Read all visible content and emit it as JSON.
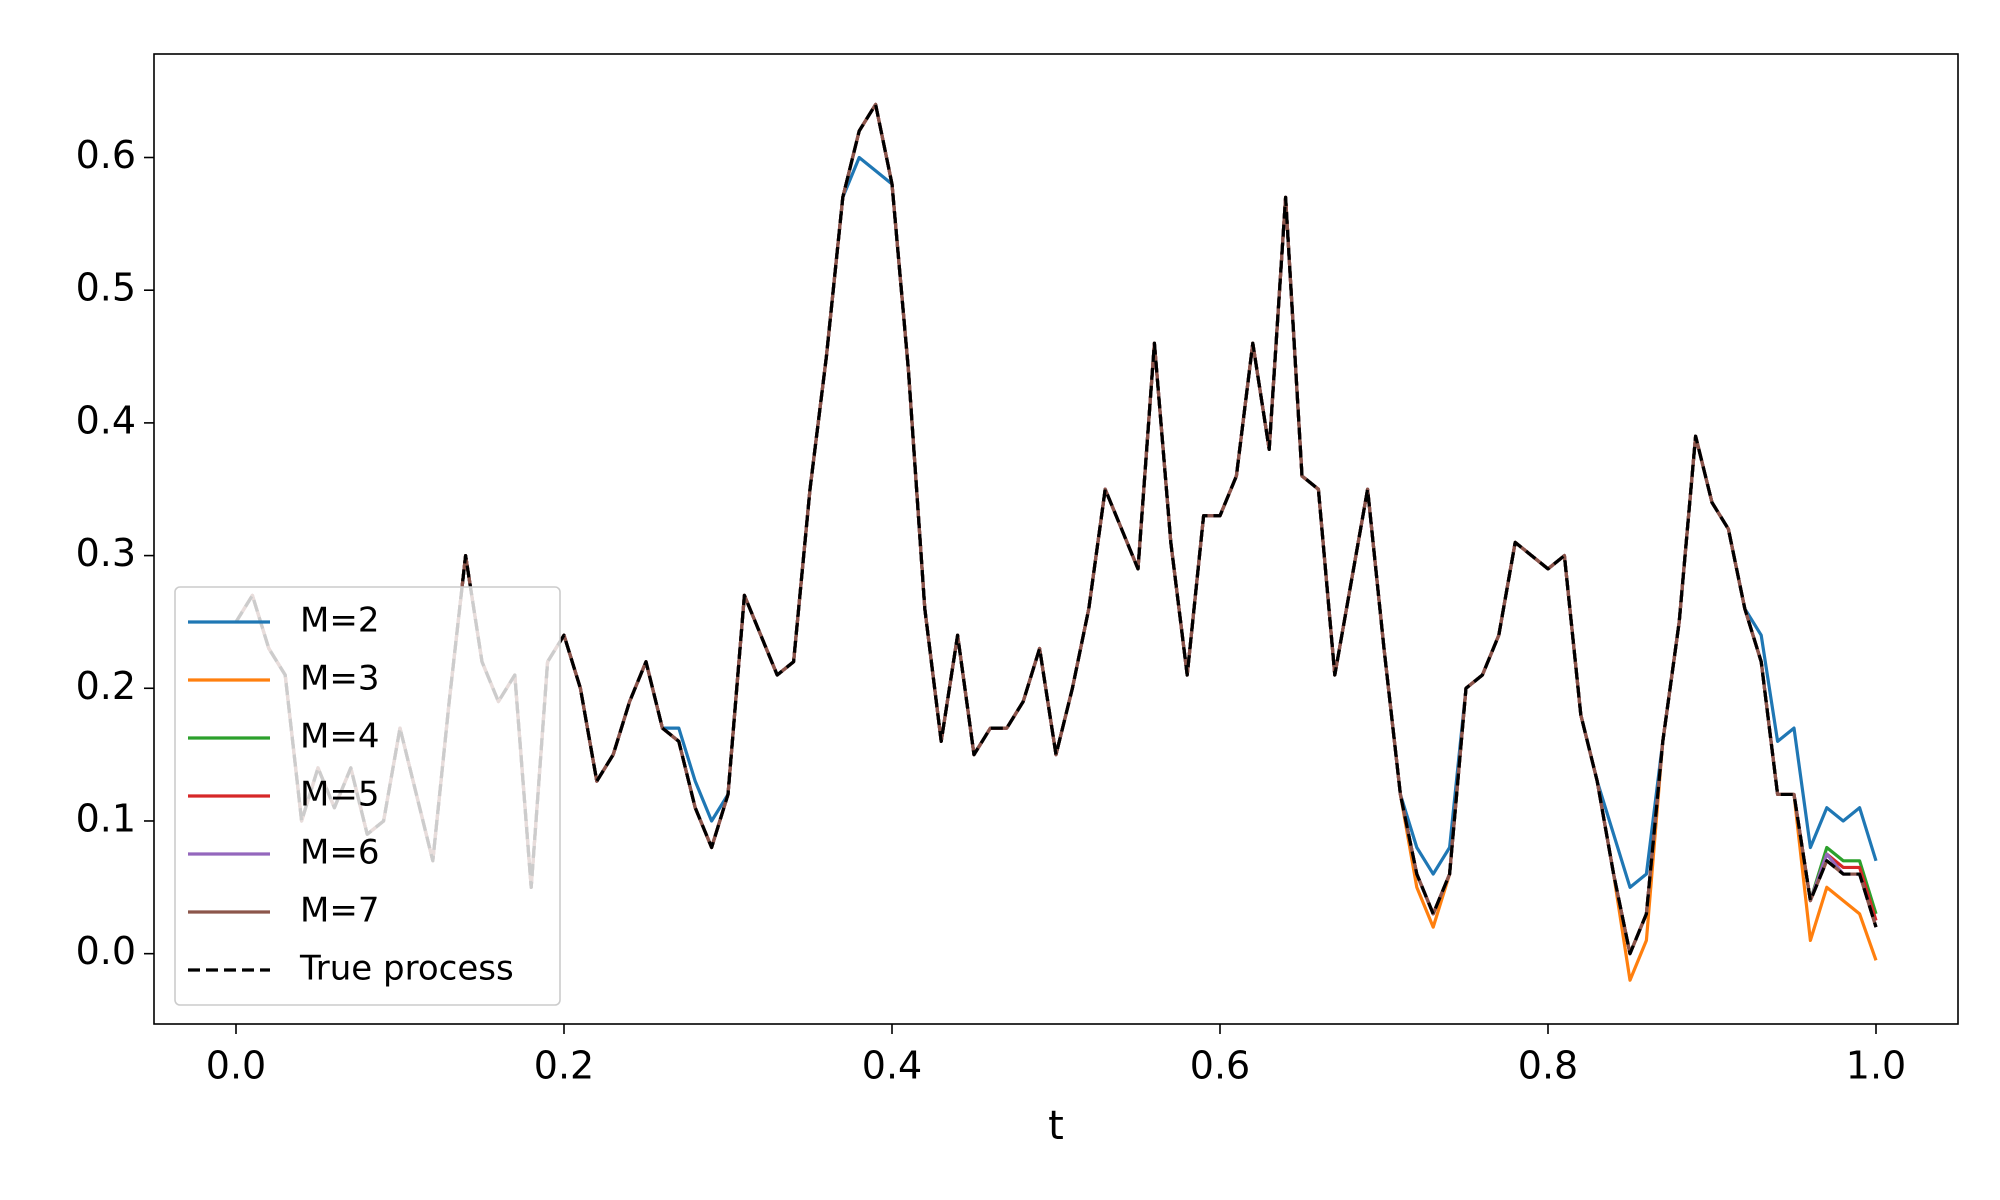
{
  "chart_data": {
    "type": "line",
    "x_label": "t",
    "x": [
      0,
      0.01,
      0.02,
      0.03,
      0.04,
      0.05,
      0.06,
      0.07,
      0.08,
      0.09,
      0.1,
      0.11,
      0.12,
      0.13,
      0.14,
      0.15,
      0.16,
      0.17,
      0.18,
      0.19,
      0.2,
      0.21,
      0.22,
      0.23,
      0.24,
      0.25,
      0.26,
      0.27,
      0.28,
      0.29,
      0.3,
      0.31,
      0.32,
      0.33,
      0.34,
      0.35,
      0.36,
      0.37,
      0.38,
      0.39,
      0.4,
      0.41,
      0.42,
      0.43,
      0.44,
      0.45,
      0.46,
      0.47,
      0.48,
      0.49,
      0.5,
      0.51,
      0.52,
      0.53,
      0.54,
      0.55,
      0.56,
      0.57,
      0.58,
      0.59,
      0.6,
      0.61,
      0.62,
      0.63,
      0.64,
      0.65,
      0.66,
      0.67,
      0.68,
      0.69,
      0.7,
      0.71,
      0.72,
      0.73,
      0.74,
      0.75,
      0.76,
      0.77,
      0.78,
      0.79,
      0.8,
      0.81,
      0.82,
      0.83,
      0.84,
      0.85,
      0.86,
      0.87,
      0.88,
      0.89,
      0.9,
      0.91,
      0.92,
      0.93,
      0.94,
      0.95,
      0.96,
      0.97,
      0.98,
      0.99,
      1
    ],
    "series": [
      {
        "name": "M=2",
        "color": "#1f77b4",
        "linestyle": "solid",
        "values": [
          0.25,
          0.27,
          0.23,
          0.21,
          0.1,
          0.14,
          0.11,
          0.14,
          0.09,
          0.1,
          0.17,
          0.12,
          0.07,
          0.19,
          0.3,
          0.22,
          0.19,
          0.21,
          0.05,
          0.22,
          0.24,
          0.2,
          0.13,
          0.15,
          0.19,
          0.22,
          0.17,
          0.17,
          0.13,
          0.1,
          0.12,
          0.27,
          0.24,
          0.21,
          0.22,
          0.35,
          0.45,
          0.57,
          0.6,
          0.59,
          0.58,
          0.44,
          0.26,
          0.16,
          0.24,
          0.15,
          0.17,
          0.17,
          0.19,
          0.23,
          0.15,
          0.2,
          0.26,
          0.35,
          0.32,
          0.29,
          0.46,
          0.31,
          0.21,
          0.33,
          0.33,
          0.36,
          0.46,
          0.38,
          0.57,
          0.36,
          0.35,
          0.21,
          0.28,
          0.35,
          0.23,
          0.12,
          0.08,
          0.06,
          0.08,
          0.2,
          0.21,
          0.24,
          0.31,
          0.3,
          0.29,
          0.3,
          0.18,
          0.13,
          0.09,
          0.05,
          0.06,
          0.16,
          0.25,
          0.39,
          0.34,
          0.32,
          0.26,
          0.24,
          0.16,
          0.17,
          0.08,
          0.11,
          0.1,
          0.11,
          0.07
        ]
      },
      {
        "name": "M=3",
        "color": "#ff7f0e",
        "linestyle": "solid",
        "values": [
          0.25,
          0.27,
          0.23,
          0.21,
          0.1,
          0.14,
          0.11,
          0.14,
          0.09,
          0.1,
          0.17,
          0.12,
          0.07,
          0.19,
          0.3,
          0.22,
          0.19,
          0.21,
          0.05,
          0.22,
          0.24,
          0.2,
          0.13,
          0.15,
          0.19,
          0.22,
          0.17,
          0.16,
          0.11,
          0.08,
          0.12,
          0.27,
          0.24,
          0.21,
          0.22,
          0.35,
          0.45,
          0.57,
          0.62,
          0.64,
          0.58,
          0.44,
          0.26,
          0.16,
          0.24,
          0.15,
          0.17,
          0.17,
          0.19,
          0.23,
          0.15,
          0.2,
          0.26,
          0.35,
          0.32,
          0.29,
          0.46,
          0.31,
          0.21,
          0.33,
          0.33,
          0.36,
          0.46,
          0.38,
          0.57,
          0.36,
          0.35,
          0.21,
          0.28,
          0.35,
          0.23,
          0.12,
          0.05,
          0.02,
          0.06,
          0.2,
          0.21,
          0.24,
          0.31,
          0.3,
          0.29,
          0.3,
          0.18,
          0.13,
          0.06,
          -0.02,
          0.01,
          0.16,
          0.25,
          0.39,
          0.34,
          0.32,
          0.26,
          0.22,
          0.12,
          0.12,
          0.01,
          0.05,
          0.04,
          0.03,
          -0.005
        ]
      },
      {
        "name": "M=4",
        "color": "#2ca02c",
        "linestyle": "solid",
        "values": [
          0.25,
          0.27,
          0.23,
          0.21,
          0.1,
          0.14,
          0.11,
          0.14,
          0.09,
          0.1,
          0.17,
          0.12,
          0.07,
          0.19,
          0.3,
          0.22,
          0.19,
          0.21,
          0.05,
          0.22,
          0.24,
          0.2,
          0.13,
          0.15,
          0.19,
          0.22,
          0.17,
          0.16,
          0.11,
          0.08,
          0.12,
          0.27,
          0.24,
          0.21,
          0.22,
          0.35,
          0.45,
          0.57,
          0.62,
          0.64,
          0.58,
          0.44,
          0.26,
          0.16,
          0.24,
          0.15,
          0.17,
          0.17,
          0.19,
          0.23,
          0.15,
          0.2,
          0.26,
          0.35,
          0.32,
          0.29,
          0.46,
          0.31,
          0.21,
          0.33,
          0.33,
          0.36,
          0.46,
          0.38,
          0.57,
          0.36,
          0.35,
          0.21,
          0.28,
          0.35,
          0.23,
          0.12,
          0.06,
          0.03,
          0.06,
          0.2,
          0.21,
          0.24,
          0.31,
          0.3,
          0.29,
          0.3,
          0.18,
          0.13,
          0.06,
          0.0,
          0.03,
          0.16,
          0.25,
          0.39,
          0.34,
          0.32,
          0.26,
          0.22,
          0.12,
          0.12,
          0.04,
          0.08,
          0.07,
          0.07,
          0.03
        ]
      },
      {
        "name": "M=5",
        "color": "#d62728",
        "linestyle": "solid",
        "values": [
          0.25,
          0.27,
          0.23,
          0.21,
          0.1,
          0.14,
          0.11,
          0.14,
          0.09,
          0.1,
          0.17,
          0.12,
          0.07,
          0.19,
          0.3,
          0.22,
          0.19,
          0.21,
          0.05,
          0.22,
          0.24,
          0.2,
          0.13,
          0.15,
          0.19,
          0.22,
          0.17,
          0.16,
          0.11,
          0.08,
          0.12,
          0.27,
          0.24,
          0.21,
          0.22,
          0.35,
          0.45,
          0.57,
          0.62,
          0.64,
          0.58,
          0.44,
          0.26,
          0.16,
          0.24,
          0.15,
          0.17,
          0.17,
          0.19,
          0.23,
          0.15,
          0.2,
          0.26,
          0.35,
          0.32,
          0.29,
          0.46,
          0.31,
          0.21,
          0.33,
          0.33,
          0.36,
          0.46,
          0.38,
          0.57,
          0.36,
          0.35,
          0.21,
          0.28,
          0.35,
          0.23,
          0.12,
          0.06,
          0.03,
          0.06,
          0.2,
          0.21,
          0.24,
          0.31,
          0.3,
          0.29,
          0.3,
          0.18,
          0.13,
          0.06,
          0.0,
          0.03,
          0.16,
          0.25,
          0.39,
          0.34,
          0.32,
          0.26,
          0.22,
          0.12,
          0.12,
          0.04,
          0.075,
          0.065,
          0.065,
          0.025
        ]
      },
      {
        "name": "M=6",
        "color": "#9467bd",
        "linestyle": "solid",
        "values": [
          0.25,
          0.27,
          0.23,
          0.21,
          0.1,
          0.14,
          0.11,
          0.14,
          0.09,
          0.1,
          0.17,
          0.12,
          0.07,
          0.19,
          0.3,
          0.22,
          0.19,
          0.21,
          0.05,
          0.22,
          0.24,
          0.2,
          0.13,
          0.15,
          0.19,
          0.22,
          0.17,
          0.16,
          0.11,
          0.08,
          0.12,
          0.27,
          0.24,
          0.21,
          0.22,
          0.35,
          0.45,
          0.57,
          0.62,
          0.64,
          0.58,
          0.44,
          0.26,
          0.16,
          0.24,
          0.15,
          0.17,
          0.17,
          0.19,
          0.23,
          0.15,
          0.2,
          0.26,
          0.35,
          0.32,
          0.29,
          0.46,
          0.31,
          0.21,
          0.33,
          0.33,
          0.36,
          0.46,
          0.38,
          0.57,
          0.36,
          0.35,
          0.21,
          0.28,
          0.35,
          0.23,
          0.12,
          0.06,
          0.03,
          0.06,
          0.2,
          0.21,
          0.24,
          0.31,
          0.3,
          0.29,
          0.3,
          0.18,
          0.13,
          0.06,
          0.0,
          0.03,
          0.16,
          0.25,
          0.39,
          0.34,
          0.32,
          0.26,
          0.22,
          0.12,
          0.12,
          0.04,
          0.075,
          0.06,
          0.06,
          0.02
        ]
      },
      {
        "name": "M=7",
        "color": "#8c564b",
        "linestyle": "solid",
        "values": [
          0.25,
          0.27,
          0.23,
          0.21,
          0.1,
          0.14,
          0.11,
          0.14,
          0.09,
          0.1,
          0.17,
          0.12,
          0.07,
          0.19,
          0.3,
          0.22,
          0.19,
          0.21,
          0.05,
          0.22,
          0.24,
          0.2,
          0.13,
          0.15,
          0.19,
          0.22,
          0.17,
          0.16,
          0.11,
          0.08,
          0.12,
          0.27,
          0.24,
          0.21,
          0.22,
          0.35,
          0.45,
          0.57,
          0.62,
          0.64,
          0.58,
          0.44,
          0.26,
          0.16,
          0.24,
          0.15,
          0.17,
          0.17,
          0.19,
          0.23,
          0.15,
          0.2,
          0.26,
          0.35,
          0.32,
          0.29,
          0.46,
          0.31,
          0.21,
          0.33,
          0.33,
          0.36,
          0.46,
          0.38,
          0.57,
          0.36,
          0.35,
          0.21,
          0.28,
          0.35,
          0.23,
          0.12,
          0.06,
          0.03,
          0.06,
          0.2,
          0.21,
          0.24,
          0.31,
          0.3,
          0.29,
          0.3,
          0.18,
          0.13,
          0.06,
          0.0,
          0.03,
          0.16,
          0.25,
          0.39,
          0.34,
          0.32,
          0.26,
          0.22,
          0.12,
          0.12,
          0.04,
          0.07,
          0.06,
          0.06,
          0.02
        ]
      },
      {
        "name": "True process",
        "color": "#000000",
        "linestyle": "dashed",
        "values": [
          0.25,
          0.27,
          0.23,
          0.21,
          0.1,
          0.14,
          0.11,
          0.14,
          0.09,
          0.1,
          0.17,
          0.12,
          0.07,
          0.19,
          0.3,
          0.22,
          0.19,
          0.21,
          0.05,
          0.22,
          0.24,
          0.2,
          0.13,
          0.15,
          0.19,
          0.22,
          0.17,
          0.16,
          0.11,
          0.08,
          0.12,
          0.27,
          0.24,
          0.21,
          0.22,
          0.35,
          0.45,
          0.57,
          0.62,
          0.64,
          0.58,
          0.44,
          0.26,
          0.16,
          0.24,
          0.15,
          0.17,
          0.17,
          0.19,
          0.23,
          0.15,
          0.2,
          0.26,
          0.35,
          0.32,
          0.29,
          0.46,
          0.31,
          0.21,
          0.33,
          0.33,
          0.36,
          0.46,
          0.38,
          0.57,
          0.36,
          0.35,
          0.21,
          0.28,
          0.35,
          0.23,
          0.12,
          0.06,
          0.03,
          0.06,
          0.2,
          0.21,
          0.24,
          0.31,
          0.3,
          0.29,
          0.3,
          0.18,
          0.13,
          0.06,
          0.0,
          0.03,
          0.16,
          0.25,
          0.39,
          0.34,
          0.32,
          0.26,
          0.22,
          0.12,
          0.12,
          0.04,
          0.07,
          0.06,
          0.06,
          0.02
        ]
      }
    ],
    "xlim": [
      -0.05,
      1.05
    ],
    "ylim": [
      -0.053,
      0.678
    ],
    "xticks": [
      {
        "value": 0,
        "label": "0.0"
      },
      0.2,
      0.4,
      0.6,
      0.8,
      {
        "value": 1,
        "label": "1.0"
      }
    ],
    "yticks": [
      {
        "value": 0,
        "label": "0.0"
      },
      0.1,
      0.2,
      0.3,
      0.4,
      0.5,
      0.6
    ],
    "legend": "lower left",
    "grid": false
  }
}
